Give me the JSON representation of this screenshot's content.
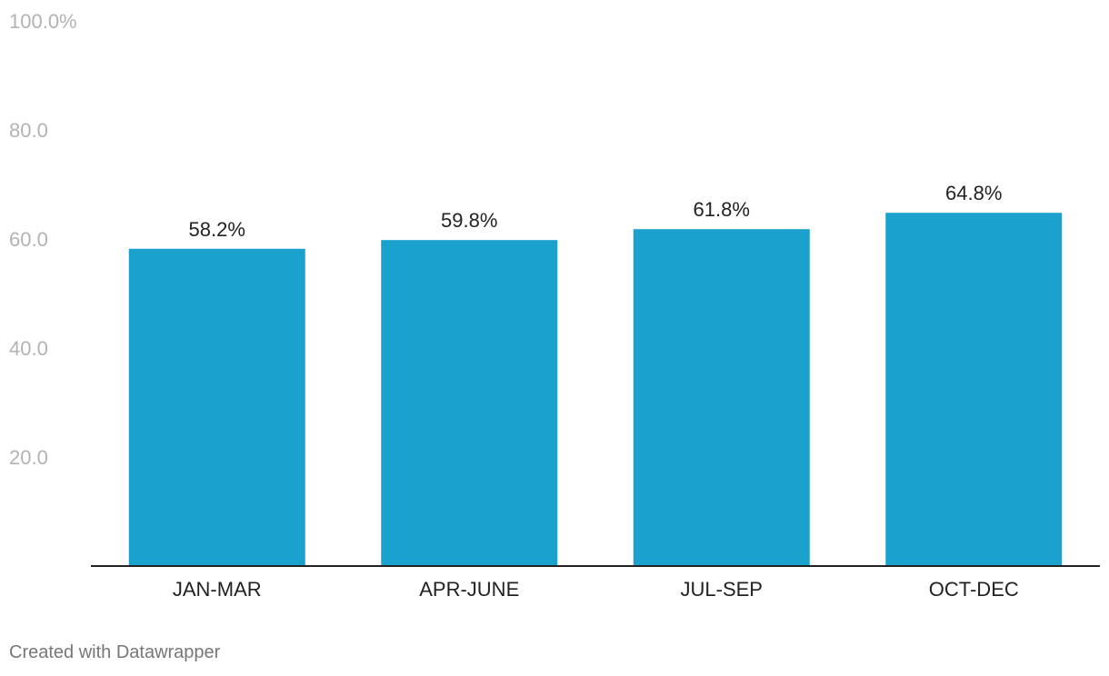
{
  "chart_data": {
    "type": "bar",
    "categories": [
      "JAN-MAR",
      "APR-JUNE",
      "JUL-SEP",
      "OCT-DEC"
    ],
    "values": [
      58.2,
      59.8,
      61.8,
      64.8
    ],
    "value_labels": [
      "58.2%",
      "59.8%",
      "61.8%",
      "64.8%"
    ],
    "title": "",
    "xlabel": "",
    "ylabel": "",
    "ylim": [
      0,
      100
    ],
    "yticks": [
      20,
      40,
      60,
      80,
      100
    ],
    "ytick_labels": [
      "20.0",
      "40.0",
      "60.0",
      "80.0",
      "100.0%"
    ],
    "grid": false,
    "bar_color": "#1aa1ce"
  },
  "footer": {
    "credit": "Created with Datawrapper"
  }
}
